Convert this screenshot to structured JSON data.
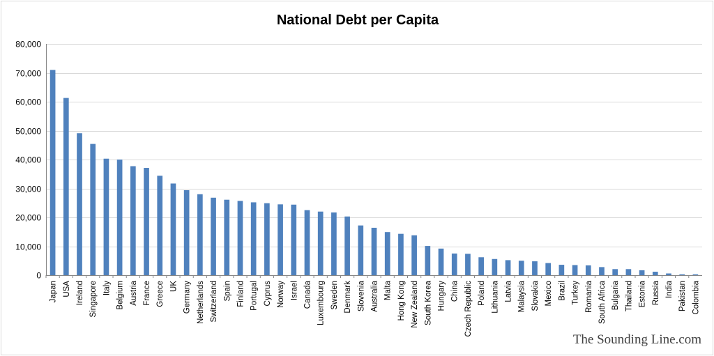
{
  "chart_data": {
    "type": "bar",
    "title": "National Debt per Capita",
    "xlabel": "",
    "ylabel": "",
    "ylim": [
      0,
      80000
    ],
    "yticks": [
      0,
      10000,
      20000,
      30000,
      40000,
      50000,
      60000,
      70000,
      80000
    ],
    "ytick_labels": [
      "0",
      "10,000",
      "20,000",
      "30,000",
      "40,000",
      "50,000",
      "60,000",
      "70,000",
      "80,000"
    ],
    "grid": true,
    "bar_color": "#4f81bd",
    "categories": [
      "Japan",
      "USA",
      "Ireland",
      "Singapore",
      "Italy",
      "Belgium",
      "Austria",
      "France",
      "Greece",
      "UK",
      "Germany",
      "Netherlands",
      "Switzerland",
      "Spain",
      "Finland",
      "Portugal",
      "Cyprus",
      "Norway",
      "Israel",
      "Canada",
      "Luxembourg",
      "Sweden",
      "Denmark",
      "Slovenia",
      "Australia",
      "Malta",
      "Hong Kong",
      "New Zealand",
      "South Korea",
      "Hungary",
      "China",
      "Czech Republic",
      "Poland",
      "Lithuania",
      "Latvia",
      "Malaysia",
      "Slovakia",
      "Mexico",
      "Brazil",
      "Turkey",
      "Romania",
      "South Africa",
      "Bulgaria",
      "Thailand",
      "Estonia",
      "Russia",
      "India",
      "Pakistan",
      "Colombia"
    ],
    "values": [
      71000,
      61300,
      49100,
      45400,
      40300,
      40000,
      37700,
      37100,
      34400,
      31700,
      29400,
      28000,
      26800,
      26100,
      25700,
      25200,
      24900,
      24500,
      24400,
      22500,
      22000,
      21700,
      20300,
      17200,
      16400,
      14900,
      14300,
      13800,
      10100,
      9200,
      7500,
      7400,
      6200,
      5600,
      5200,
      5000,
      4800,
      4200,
      3600,
      3500,
      3400,
      2800,
      2100,
      2100,
      1700,
      1200,
      600,
      300,
      300
    ]
  },
  "watermark": "The Sounding Line.com"
}
